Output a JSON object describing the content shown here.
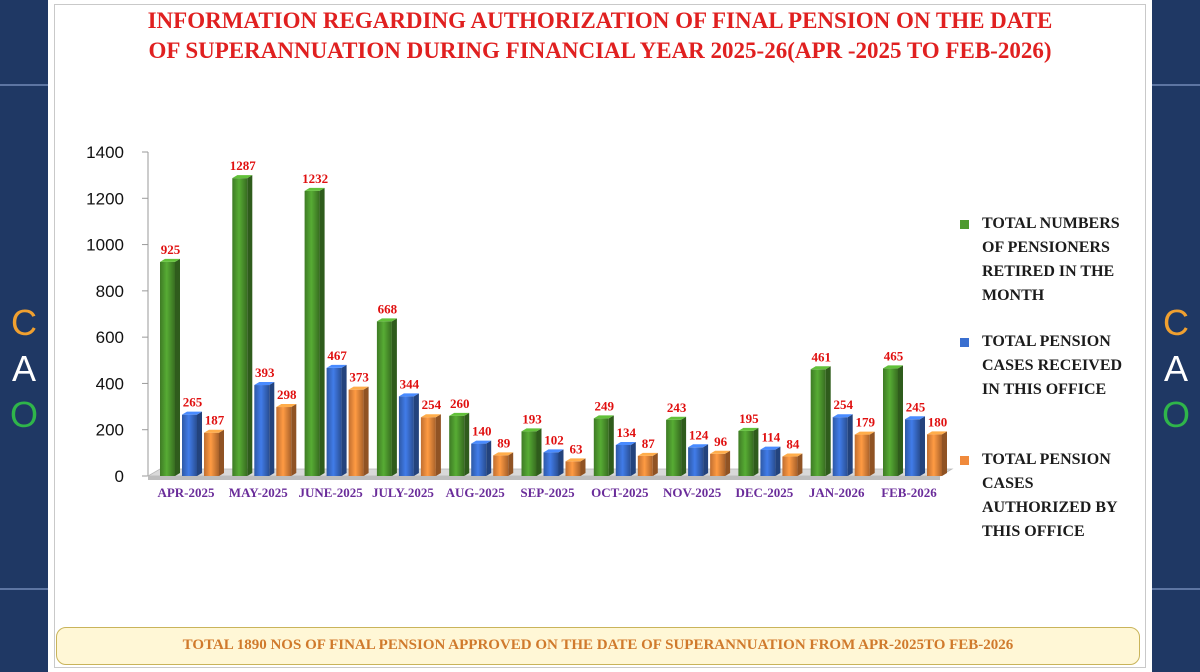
{
  "sidebar": {
    "letters": [
      {
        "text": "C",
        "color": "#f0a030"
      },
      {
        "text": "A",
        "color": "#ffffff"
      },
      {
        "text": "O",
        "color": "#2fb54a"
      }
    ]
  },
  "header": {
    "title_line1": "INFORMATION REGARDING AUTHORIZATION  OF FINAL PENSION ON THE DATE",
    "title_line2": "OF SUPERANNUATION  DURING FINANCIAL YEAR 2025-26(APR -2025 TO FEB-2026)"
  },
  "chart_data": {
    "type": "bar",
    "categories": [
      "APR-2025",
      "MAY-2025",
      "JUNE-2025",
      "JULY-2025",
      "AUG-2025",
      "SEP-2025",
      "OCT-2025",
      "NOV-2025",
      "DEC-2025",
      "JAN-2026",
      "FEB-2026"
    ],
    "series": [
      {
        "name": "TOTAL NUMBERS OF PENSIONERS RETIRED IN THE MONTH",
        "color": "#4e9a2e",
        "values": [
          925,
          1287,
          1232,
          668,
          260,
          193,
          249,
          243,
          195,
          461,
          465
        ]
      },
      {
        "name": "TOTAL PENSION CASES RECEIVED IN THIS OFFICE",
        "color": "#3a6fd0",
        "values": [
          265,
          393,
          467,
          344,
          140,
          102,
          134,
          124,
          114,
          254,
          245
        ]
      },
      {
        "name": "TOTAL PENSION CASES AUTHORIZED BY THIS OFFICE",
        "color": "#f08a3c",
        "values": [
          187,
          298,
          373,
          254,
          89,
          63,
          87,
          96,
          84,
          179,
          180
        ]
      }
    ],
    "ylim": [
      0,
      1400
    ],
    "yticks": [
      0,
      200,
      400,
      600,
      800,
      1000,
      1200,
      1400
    ],
    "grid": false,
    "legend_position": "right",
    "data_label_color": "#e01010",
    "category_label_color": "#6a2c9a"
  },
  "footer": {
    "text": "TOTAL 1890  NOS OF FINAL PENSION APPROVED ON THE DATE OF SUPERANNUATION FROM APR-2025TO FEB-2026"
  }
}
